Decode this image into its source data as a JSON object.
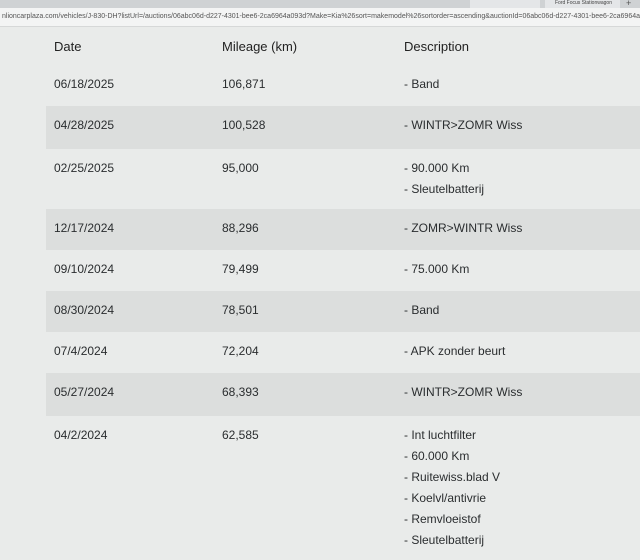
{
  "browser": {
    "tabs": [
      "",
      "Ford Focus Stationwagon"
    ],
    "url": "nlioncarplaza.com/vehicles/J-830-DH?listUrl=/auctions/06abc06d-d227-4301-bee6-2ca6964a093d?Make=Kia%26sort=makemodel%26sortorder=ascending&auctionId=06abc06d-d227-4301-bee6-2ca6964a093d&kind"
  },
  "table": {
    "headers": [
      "Date",
      "Mileage (km)",
      "Description"
    ],
    "rows": [
      {
        "date": "06/18/2025",
        "mileage": "106,871",
        "items": [
          "- Band"
        ]
      },
      {
        "date": "04/28/2025",
        "mileage": "100,528",
        "items": [
          "- WINTR>ZOMR Wiss"
        ]
      },
      {
        "date": "02/25/2025",
        "mileage": "95,000",
        "items": [
          "- 90.000 Km",
          "- Sleutelbatterij"
        ]
      },
      {
        "date": "12/17/2024",
        "mileage": "88,296",
        "items": [
          "- ZOMR>WINTR Wiss"
        ]
      },
      {
        "date": "09/10/2024",
        "mileage": "79,499",
        "items": [
          "- 75.000 Km"
        ]
      },
      {
        "date": "08/30/2024",
        "mileage": "78,501",
        "items": [
          "- Band"
        ]
      },
      {
        "date": "07/4/2024",
        "mileage": "72,204",
        "items": [
          "- APK zonder beurt"
        ]
      },
      {
        "date": "05/27/2024",
        "mileage": "68,393",
        "items": [
          "- WINTR>ZOMR Wiss"
        ]
      },
      {
        "date": "04/2/2024",
        "mileage": "62,585",
        "items": [
          "- Int luchtfilter",
          "- 60.000 Km",
          "- Ruitewiss.blad V",
          "- Koelvl/antivrie",
          "- Remvloeistof",
          "- Sleutelbatterij"
        ]
      }
    ]
  }
}
